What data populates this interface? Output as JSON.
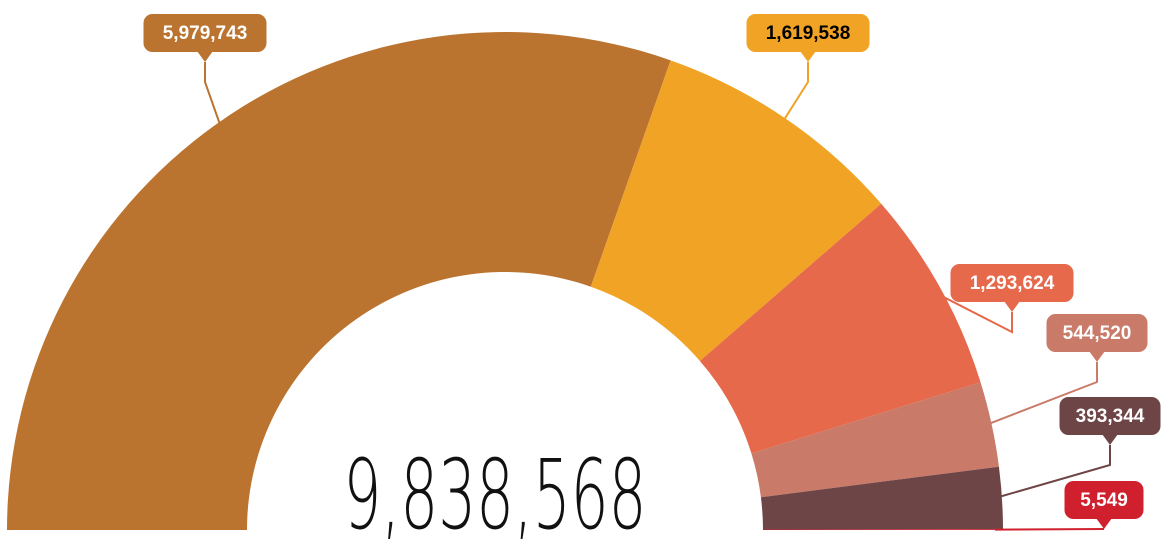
{
  "chart_data": {
    "type": "semi-donut",
    "categories": [
      null,
      null,
      null,
      null,
      null,
      null
    ],
    "values": [
      5979743,
      1619538,
      1293624,
      544520,
      393344,
      5549
    ],
    "value_labels": [
      "5,979,743",
      "1,619,538",
      "1,293,624",
      "544,520",
      "393,344",
      "5,549"
    ],
    "colors": [
      "#bb7430",
      "#f0a324",
      "#e5694a",
      "#c97a68",
      "#6e4546",
      "#d0202e"
    ],
    "annotation": "9,838,568"
  }
}
